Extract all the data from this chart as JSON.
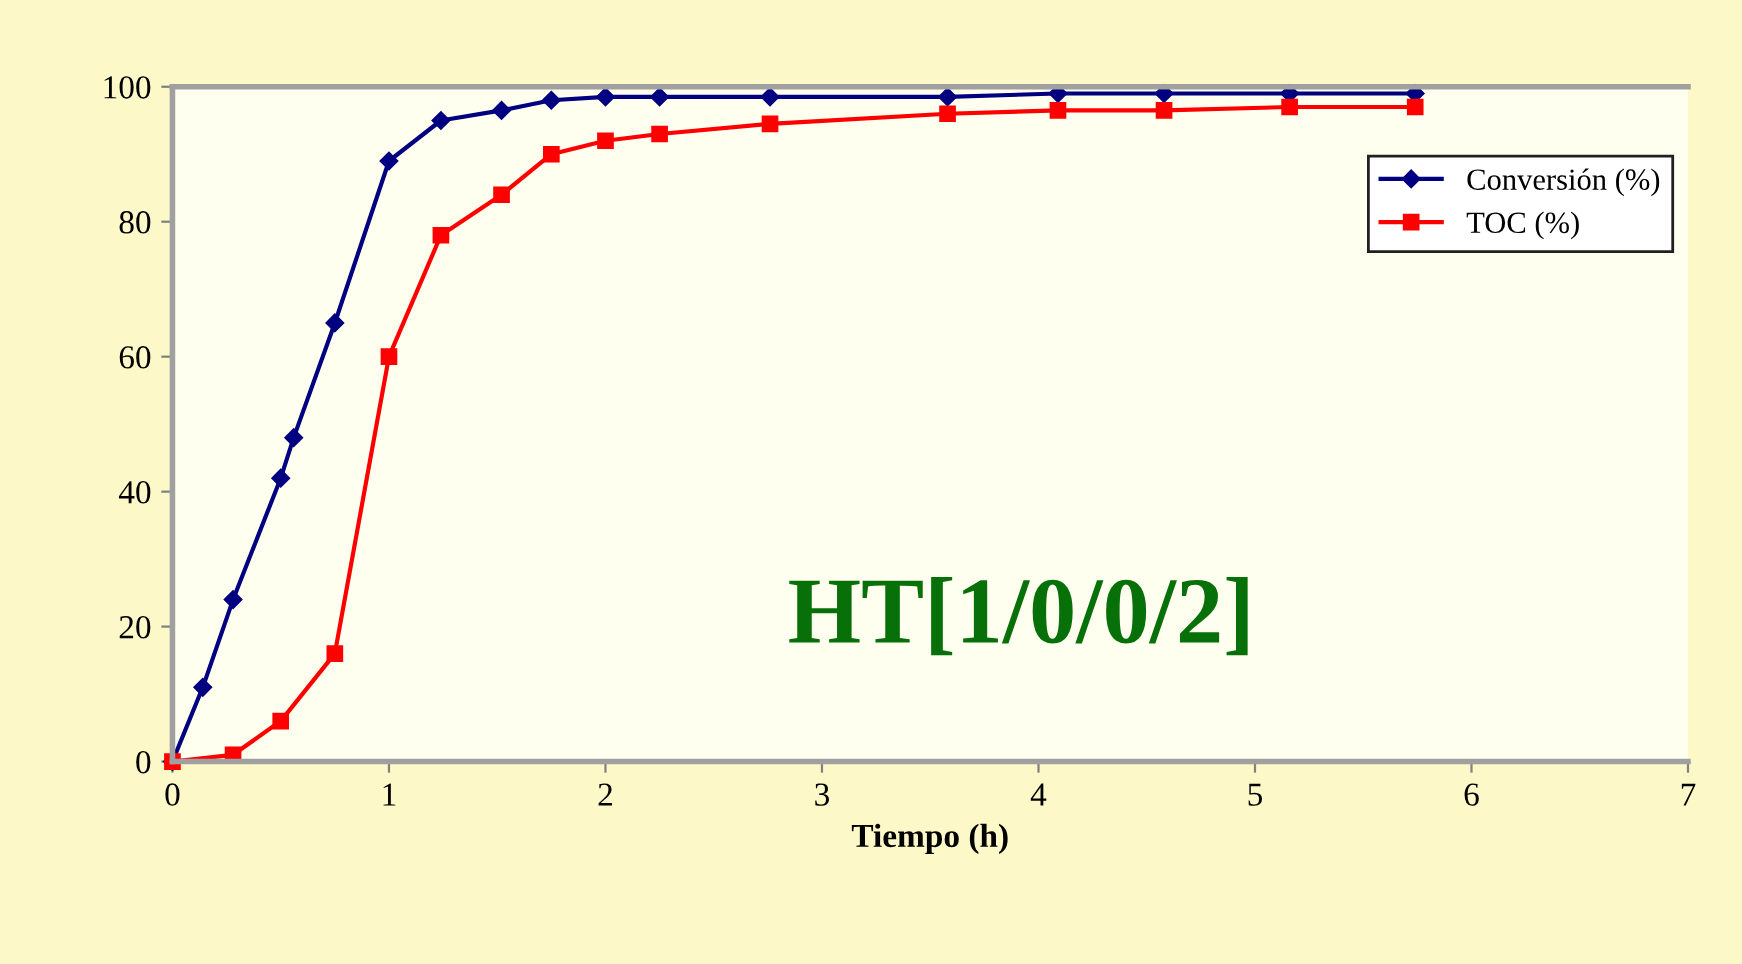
{
  "chart_data": {
    "type": "line",
    "xlabel": "Tiempo (h)",
    "annotations": [
      "HT[1/0/0/2]"
    ],
    "xlim": [
      0,
      7
    ],
    "xticks": [
      0,
      1,
      2,
      3,
      4,
      5,
      6,
      7
    ],
    "ylim": [
      0,
      100
    ],
    "yticks": [
      0,
      20,
      40,
      60,
      80,
      100
    ],
    "grid": false,
    "legend": "top right",
    "series": [
      {
        "name": "Conversión (%)",
        "color": "#000080",
        "marker": "diamond",
        "x": [
          0,
          0.14,
          0.28,
          0.5,
          0.56,
          0.75,
          1.0,
          1.24,
          1.52,
          1.75,
          2.0,
          2.25,
          2.76,
          3.58,
          4.09,
          4.58,
          5.16,
          5.74
        ],
        "values": [
          0,
          11,
          24,
          42,
          48,
          65,
          89,
          95,
          96.5,
          98,
          98.5,
          98.5,
          98.5,
          98.5,
          99,
          99,
          99,
          99
        ]
      },
      {
        "name": "TOC (%)",
        "color": "#ff0000",
        "marker": "square",
        "x": [
          0,
          0.28,
          0.5,
          0.75,
          1.0,
          1.24,
          1.52,
          1.75,
          2.0,
          2.25,
          2.76,
          3.58,
          4.09,
          4.58,
          5.16,
          5.74
        ],
        "values": [
          0,
          1,
          6,
          16,
          60,
          78,
          84,
          90,
          92,
          93,
          94.5,
          96,
          96.5,
          96.5,
          97,
          97
        ]
      }
    ]
  }
}
